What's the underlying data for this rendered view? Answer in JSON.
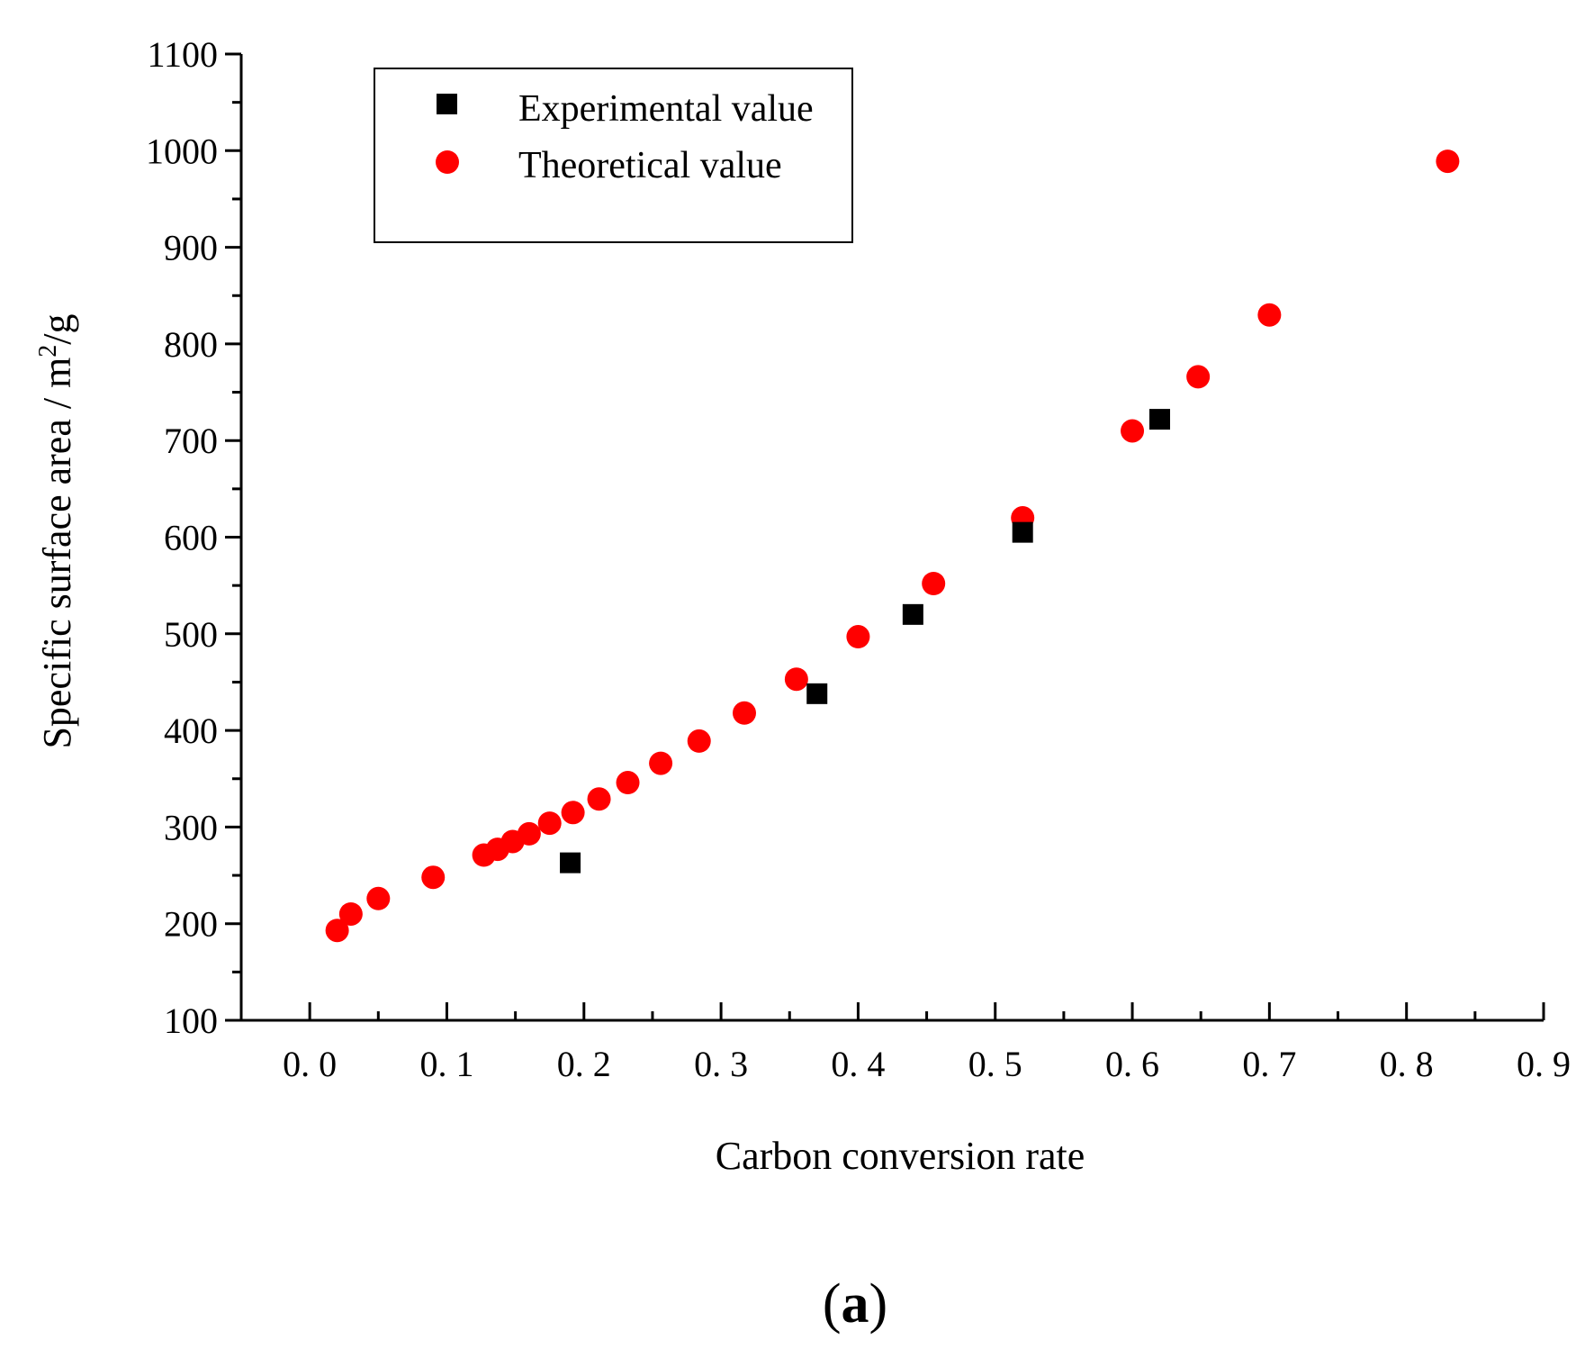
{
  "chart_data": {
    "type": "scatter",
    "title": "",
    "panel_label": {
      "open": "(",
      "letter": "a",
      "close": ")"
    },
    "xlabel": "Carbon conversion rate",
    "ylabel": {
      "base": "Specific surface area / m",
      "superscript": "2",
      "suffix": "/g"
    },
    "xlim": [
      -0.05,
      0.9
    ],
    "ylim": [
      100,
      1100
    ],
    "x_ticks": [
      0.0,
      0.1,
      0.2,
      0.3,
      0.4,
      0.5,
      0.6,
      0.7,
      0.8,
      0.9
    ],
    "x_tick_labels": [
      "0. 0",
      "0. 1",
      "0. 2",
      "0. 3",
      "0. 4",
      "0. 5",
      "0. 6",
      "0. 7",
      "0. 8",
      "0. 9"
    ],
    "y_ticks": [
      100,
      200,
      300,
      400,
      500,
      600,
      700,
      800,
      900,
      1000,
      1100
    ],
    "y_tick_labels": [
      "100",
      "200",
      "300",
      "400",
      "500",
      "600",
      "700",
      "800",
      "900",
      "1000",
      "1100"
    ],
    "grid": false,
    "legend_position": "top-left",
    "series": [
      {
        "name": "Experimental value",
        "marker": "square",
        "color": "#000000",
        "x": [
          0.19,
          0.37,
          0.44,
          0.52,
          0.62
        ],
        "y": [
          263,
          438,
          520,
          605,
          722
        ]
      },
      {
        "name": "Theoretical value",
        "marker": "circle",
        "color": "#ff0000",
        "x": [
          0.02,
          0.03,
          0.05,
          0.09,
          0.127,
          0.137,
          0.148,
          0.16,
          0.175,
          0.192,
          0.211,
          0.232,
          0.256,
          0.284,
          0.317,
          0.355,
          0.4,
          0.455,
          0.52,
          0.6,
          0.648,
          0.7,
          0.83
        ],
        "y": [
          193,
          210,
          226,
          248,
          271,
          277,
          285,
          293,
          304,
          315,
          329,
          346,
          366,
          389,
          418,
          453,
          497,
          552,
          620,
          710,
          766,
          830,
          989
        ]
      }
    ]
  }
}
